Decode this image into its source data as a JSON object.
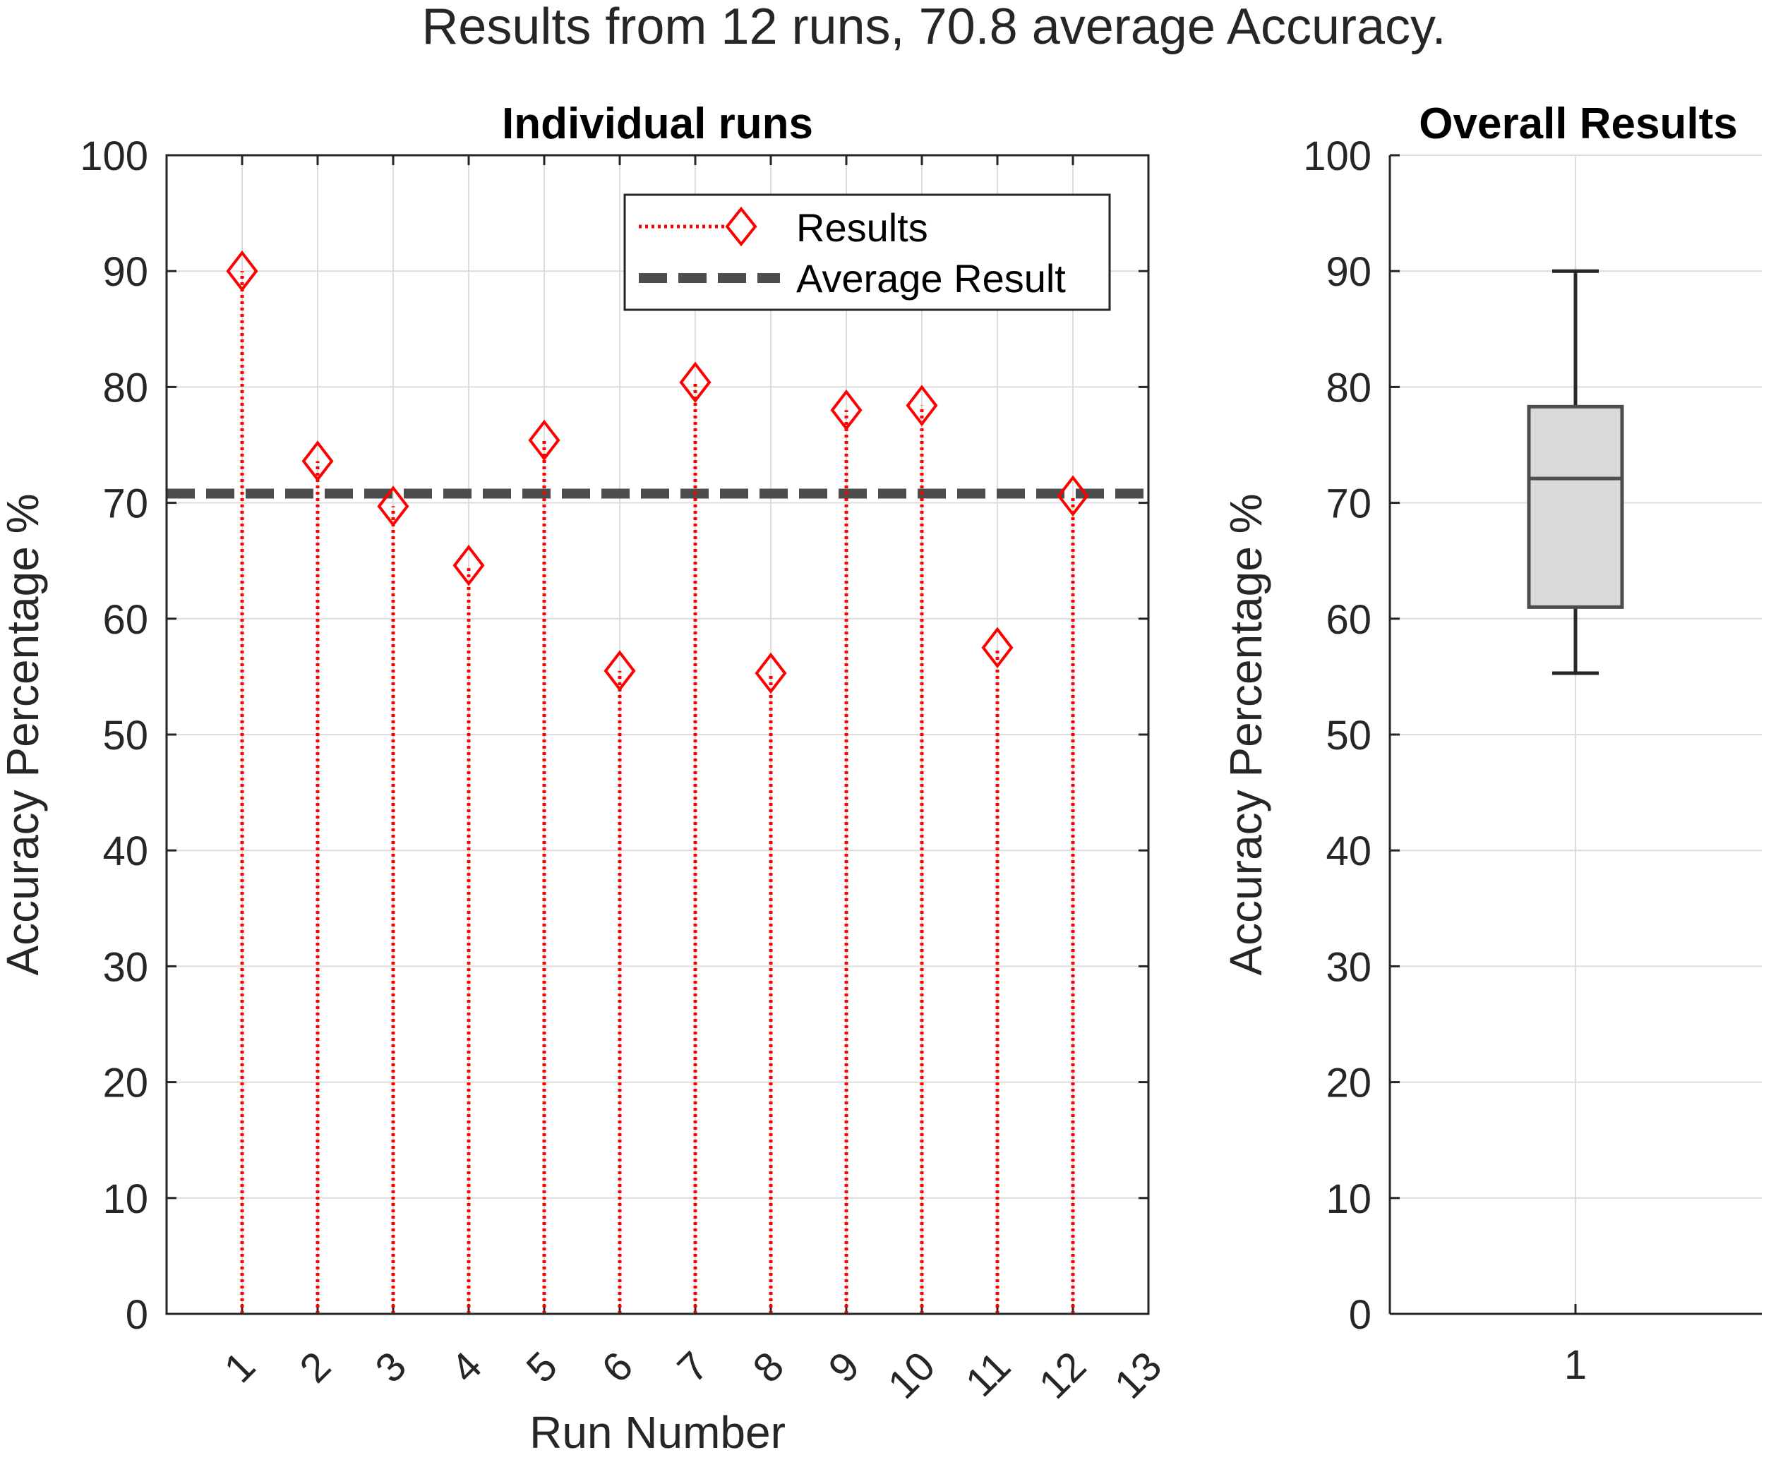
{
  "figure": {
    "title": "Results from 12 runs, 70.8 average Accuracy."
  },
  "chart_data": [
    {
      "type": "stem",
      "title": "Individual runs",
      "xlabel": "Run Number",
      "ylabel": "Accuracy Percentage %",
      "xlim": [
        0,
        13
      ],
      "ylim": [
        0,
        100
      ],
      "xticks": [
        "1",
        "2",
        "3",
        "4",
        "5",
        "6",
        "7",
        "8",
        "9",
        "10",
        "11",
        "12",
        "13"
      ],
      "yticks": [
        "0",
        "10",
        "20",
        "30",
        "40",
        "50",
        "60",
        "70",
        "80",
        "90",
        "100"
      ],
      "grid": true,
      "legend": {
        "placement": "top-right",
        "entries": [
          "Results",
          "Average Result"
        ]
      },
      "series": [
        {
          "name": "Results",
          "color": "#ff0000",
          "marker": "diamond",
          "line_style": "dotted",
          "x": [
            1,
            2,
            3,
            4,
            5,
            6,
            7,
            8,
            9,
            10,
            11,
            12
          ],
          "values": [
            90.0,
            73.6,
            69.7,
            64.6,
            75.4,
            55.5,
            80.4,
            55.3,
            78.0,
            78.4,
            57.5,
            70.6
          ]
        },
        {
          "name": "Average Result",
          "color": "#4d4d4d",
          "line_style": "dashed",
          "value": 70.8
        }
      ]
    },
    {
      "type": "box",
      "title": "Overall Results",
      "xlabel": "",
      "ylabel": "Accuracy Percentage %",
      "ylim": [
        0,
        100
      ],
      "xticks": [
        "1"
      ],
      "yticks": [
        "0",
        "10",
        "20",
        "30",
        "40",
        "50",
        "60",
        "70",
        "80",
        "90",
        "100"
      ],
      "grid": true,
      "box": {
        "min": 55.3,
        "q1": 61.0,
        "median": 72.1,
        "q3": 78.3,
        "max": 90.0,
        "fill": "#d9d9d9",
        "edge": "#4d4d4d"
      }
    }
  ]
}
